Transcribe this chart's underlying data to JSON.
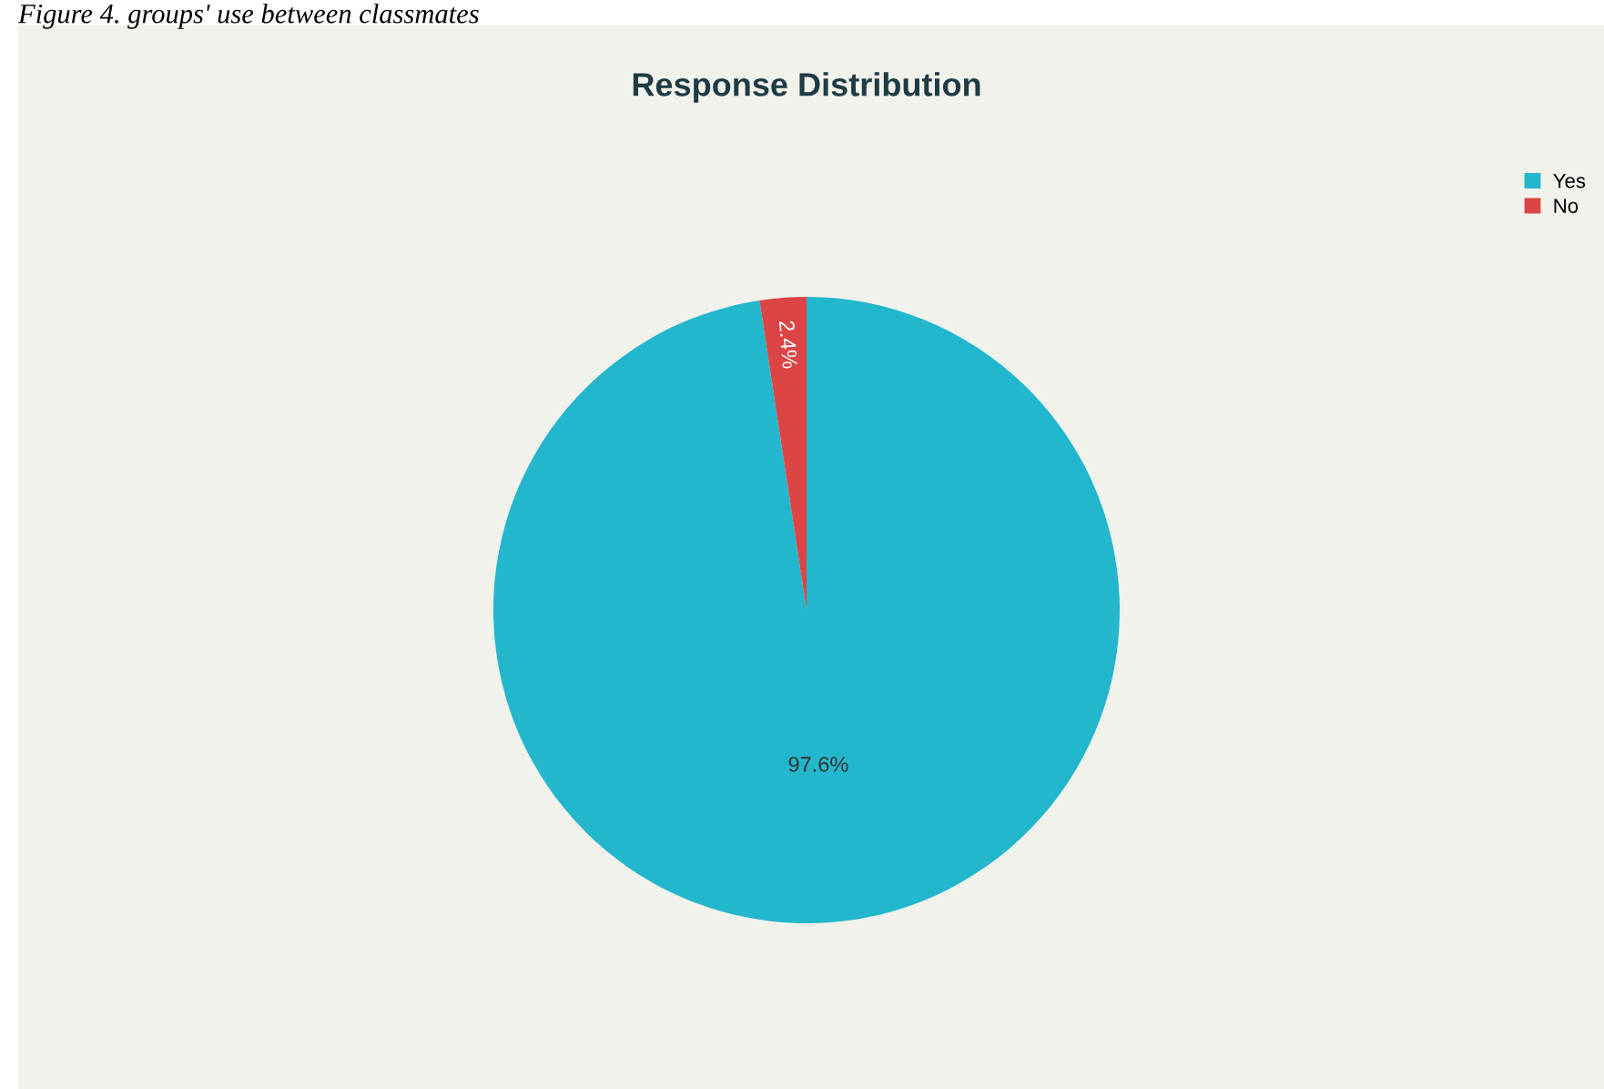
{
  "chart_data": {
    "type": "pie",
    "title": "Response Distribution",
    "categories": [
      "Yes",
      "No"
    ],
    "values": [
      97.6,
      2.4
    ],
    "colors": [
      "#22b7cc",
      "#dc4545"
    ],
    "value_labels": [
      "97.6%",
      "2.4%"
    ],
    "legend": "top right",
    "annotations": [
      "Figure 4. groups' use between classmates"
    ]
  }
}
